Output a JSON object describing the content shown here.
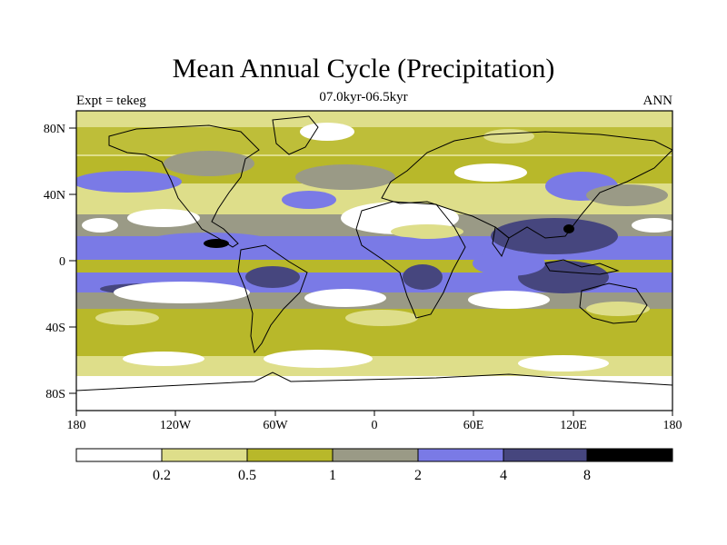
{
  "title": "Mean Annual Cycle (Precipitation)",
  "subtitle": "07.0kyr-06.5kyr",
  "left_label": "Expt = tekeg",
  "right_label": "ANN",
  "lat_ticks": [
    "80N",
    "40N",
    "0",
    "40S",
    "80S"
  ],
  "lon_ticks": [
    "180",
    "120W",
    "60W",
    "0",
    "60E",
    "120E",
    "180"
  ],
  "colorbar": {
    "levels": [
      "0.2",
      "0.5",
      "1",
      "2",
      "4",
      "8"
    ],
    "colors": [
      "#ffffff",
      "#dede8a",
      "#b8b82a",
      "#9a9a86",
      "#7a7ae6",
      "#46467e",
      "#000000"
    ]
  },
  "colors": {
    "land_outline": "#000000",
    "frame": "#000000"
  }
}
